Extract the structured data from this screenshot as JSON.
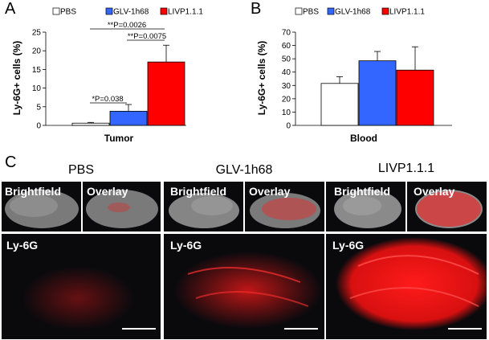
{
  "panel_labels": {
    "a": "A",
    "b": "B",
    "c": "C"
  },
  "legend": [
    {
      "label": "PBS",
      "color": "#ffffff"
    },
    {
      "label": "GLV-1h68",
      "color": "#3366ff"
    },
    {
      "label": "LIVP1.1.1",
      "color": "#ff0000"
    }
  ],
  "chart_data": [
    {
      "type": "bar",
      "categories": [
        "PBS",
        "GLV-1h68",
        "LIVP1.1.1"
      ],
      "values": [
        0.6,
        3.8,
        17.0
      ],
      "errors": [
        0.2,
        1.8,
        4.5
      ],
      "colors": [
        "#ffffff",
        "#3366ff",
        "#ff0000"
      ],
      "xlabel": "Tumor",
      "ylabel": "Ly-6G+ cells (%)",
      "ylim": [
        0,
        25
      ],
      "yticks": [
        "0",
        "5",
        "10",
        "15",
        "20",
        "25"
      ],
      "annotations": [
        "*P=0.038",
        "**P=0.0026",
        "**P=0.0075"
      ],
      "grid": false
    },
    {
      "type": "bar",
      "categories": [
        "PBS",
        "GLV-1h68",
        "LIVP1.1.1"
      ],
      "values": [
        31.5,
        48.5,
        41.5
      ],
      "errors": [
        5.0,
        7.0,
        17.5
      ],
      "colors": [
        "#ffffff",
        "#3366ff",
        "#ff0000"
      ],
      "xlabel": "Blood",
      "ylabel": "Ly-6G+ cells (%)",
      "ylim": [
        0,
        70
      ],
      "yticks": [
        "0",
        "10",
        "20",
        "30",
        "40",
        "50",
        "60",
        "70"
      ],
      "grid": false
    }
  ],
  "micrographs": {
    "columns": [
      "PBS",
      "GLV-1h68",
      "LIVP1.1.1"
    ],
    "brightfield_label": "Brightfield",
    "overlay_label": "Overlay",
    "stain_label": "Ly-6G",
    "signal_levels": [
      0.15,
      0.55,
      1.0
    ]
  }
}
